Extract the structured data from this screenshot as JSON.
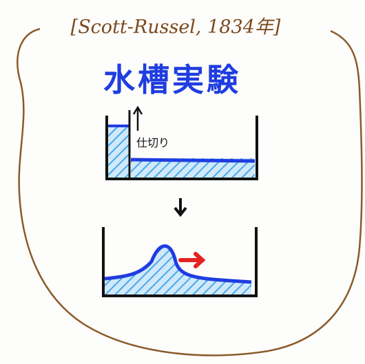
{
  "header": {
    "citation": "[Scott-Russel, 1834年]",
    "title": "水槽実験"
  },
  "labels": {
    "partition": "仕切り"
  }
}
